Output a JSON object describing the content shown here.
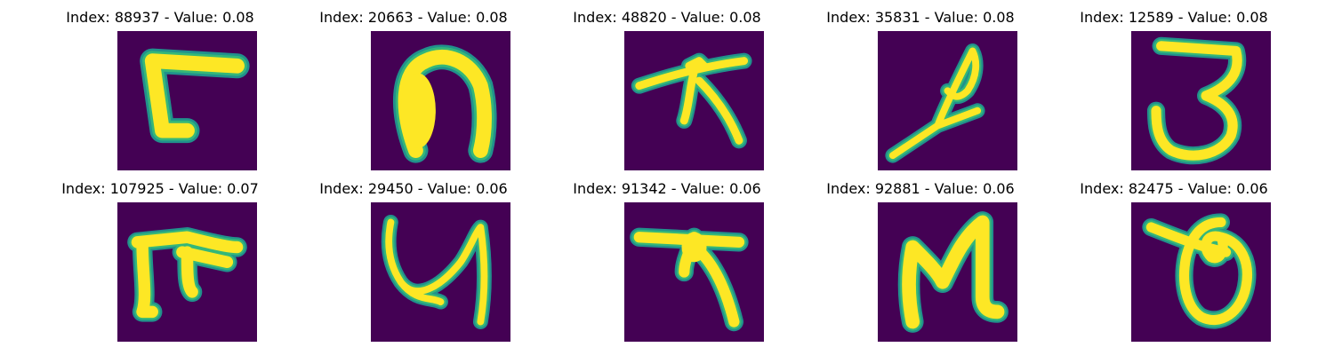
{
  "colors": {
    "background": "#440154",
    "stroke_edge": "#21918c",
    "stroke_mid": "#35b779",
    "stroke_core": "#fde725"
  },
  "panels": [
    {
      "title": "Index: 88937 - Value: 0.08",
      "glyph": "angular-hook"
    },
    {
      "title": "Index: 20663 - Value: 0.08",
      "glyph": "thick-arch"
    },
    {
      "title": "Index: 48820 - Value: 0.08",
      "glyph": "branched-stroke"
    },
    {
      "title": "Index: 35831 - Value: 0.08",
      "glyph": "diagonal-loop"
    },
    {
      "title": "Index: 12589 - Value: 0.08",
      "glyph": "three-shape"
    },
    {
      "title": "Index: 107925 - Value: 0.07",
      "glyph": "bar-with-legs"
    },
    {
      "title": "Index: 29450 - Value: 0.06",
      "glyph": "u-curve"
    },
    {
      "title": "Index: 91342 - Value: 0.06",
      "glyph": "bar-with-cross"
    },
    {
      "title": "Index: 92881 - Value: 0.06",
      "glyph": "n-shape"
    },
    {
      "title": "Index: 82475 - Value: 0.06",
      "glyph": "loop-with-tail"
    }
  ]
}
